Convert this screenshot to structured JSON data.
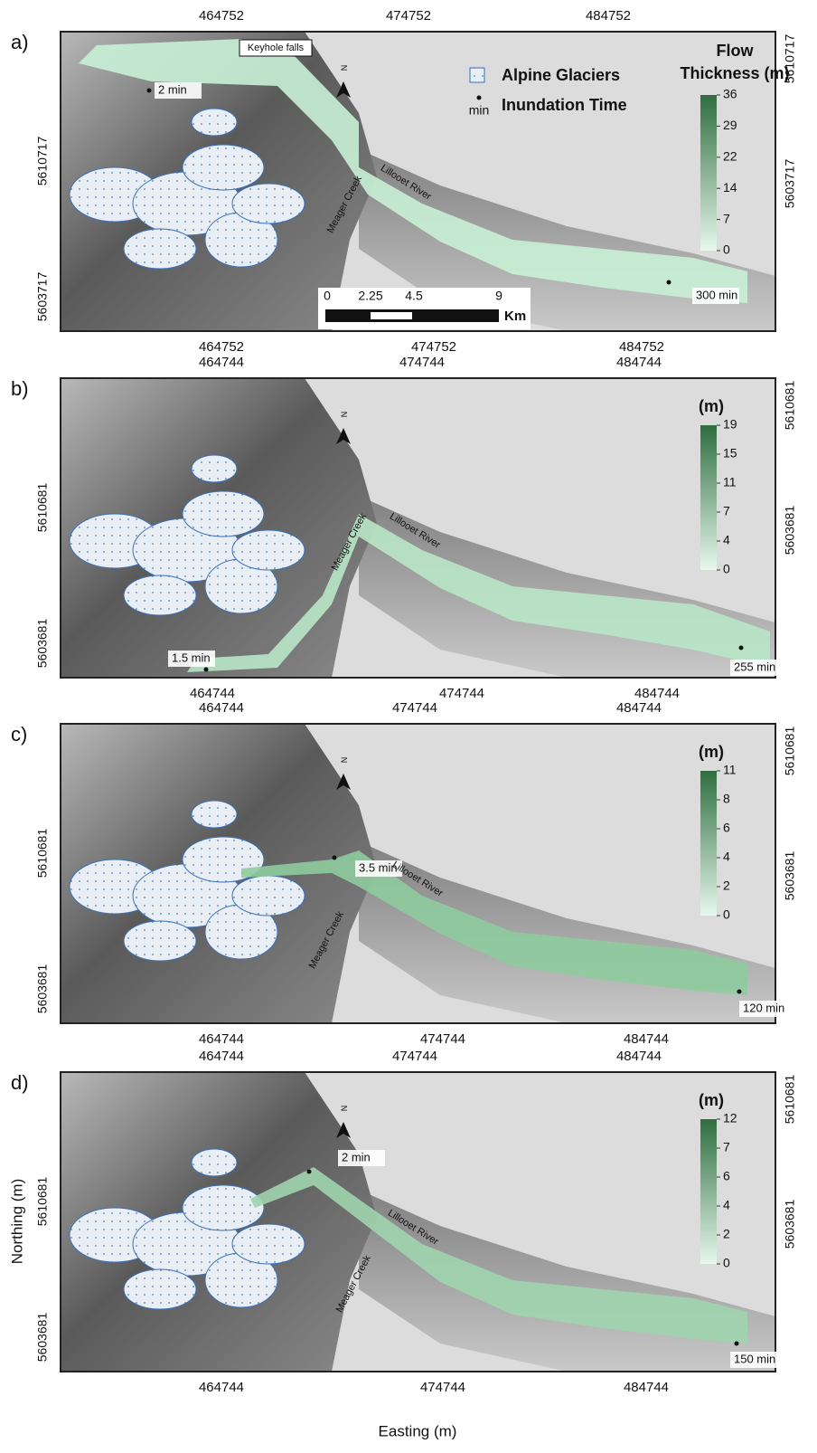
{
  "figure": {
    "x_axis_title": "Easting (m)",
    "y_axis_title": "Northing (m)",
    "north_label": "N",
    "legend": {
      "glaciers": "Alpine Glaciers",
      "min": "min",
      "inundation": "Inundation Time"
    },
    "scale_bar": {
      "labels": [
        "0",
        "2.25",
        "4.5",
        "9"
      ],
      "unit": "Km"
    },
    "panels": [
      {
        "label": "a)",
        "top_ticks": [
          464752,
          474752,
          484752
        ],
        "bottom_ticks": [
          464752,
          474752,
          484752
        ],
        "left_ticks": [
          5610717,
          5603717
        ],
        "right_ticks": [
          5610717,
          5603717
        ],
        "colorbar": {
          "title": [
            "Flow",
            "Thickness (m)"
          ],
          "ticks": [
            36,
            29,
            22,
            14,
            7,
            0
          ]
        },
        "annotations": [
          "Keyhole falls",
          "2 min",
          "300 min",
          "Lillooet River",
          "Meager Creek"
        ]
      },
      {
        "label": "b)",
        "top_ticks": [
          464744,
          474744,
          484744
        ],
        "bottom_ticks": [
          464744,
          474744,
          484744
        ],
        "left_ticks": [
          5610681,
          5603681
        ],
        "right_ticks": [
          5610681,
          5603681
        ],
        "colorbar": {
          "title": [
            "(m)"
          ],
          "ticks": [
            19,
            15,
            11,
            7,
            4,
            0
          ]
        },
        "annotations": [
          "1.5 min",
          "255 min",
          "Lillooet River",
          "Meager Creek"
        ]
      },
      {
        "label": "c)",
        "top_ticks": [
          464744,
          474744,
          484744
        ],
        "bottom_ticks": [
          464744,
          474744,
          484744
        ],
        "left_ticks": [
          5610681,
          5603681
        ],
        "right_ticks": [
          5610681,
          5603681
        ],
        "colorbar": {
          "title": [
            "(m)"
          ],
          "ticks": [
            11,
            8,
            6,
            4,
            2,
            0
          ]
        },
        "annotations": [
          "3.5 min",
          "120 min",
          "Lillooet River",
          "Meager Creek"
        ]
      },
      {
        "label": "d)",
        "top_ticks": [
          464744,
          474744,
          484744
        ],
        "bottom_ticks": [
          464744,
          474744,
          484744
        ],
        "left_ticks": [
          5610681,
          5603681
        ],
        "right_ticks": [
          5610681,
          5603681
        ],
        "colorbar": {
          "title": [
            "(m)"
          ],
          "ticks": [
            12,
            7,
            6,
            4,
            2,
            0
          ]
        },
        "annotations": [
          "2 min",
          "150 min",
          "Lillooet River",
          "Meager Creek"
        ]
      }
    ]
  }
}
